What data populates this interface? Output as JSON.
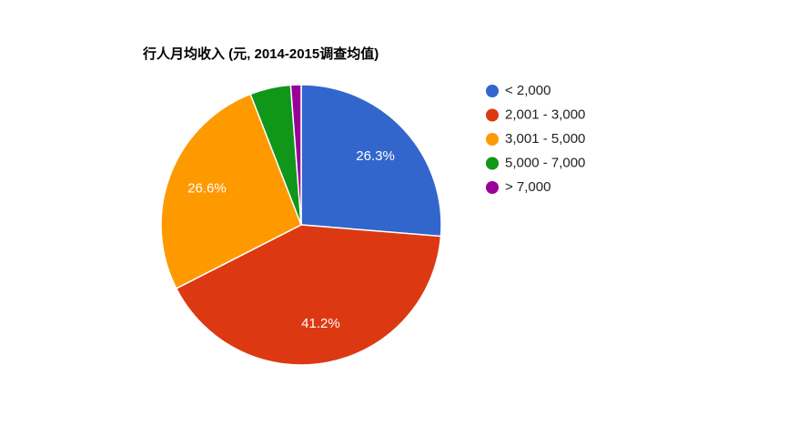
{
  "chart_data": {
    "type": "pie",
    "title": "行人月均收入 (元, 2014-2015调查均值)",
    "categories": [
      "< 2,000",
      "2,001 - 3,000",
      "3,001 - 5,000",
      "5,000 - 7,000",
      "> 7,000"
    ],
    "values": [
      26.3,
      41.2,
      26.6,
      4.7,
      1.2
    ],
    "value_labels": [
      "26.3%",
      "41.2%",
      "26.6%",
      null,
      null
    ],
    "colors": [
      "#3366cc",
      "#dc3912",
      "#ff9900",
      "#109618",
      "#990099"
    ],
    "legend": "right"
  }
}
